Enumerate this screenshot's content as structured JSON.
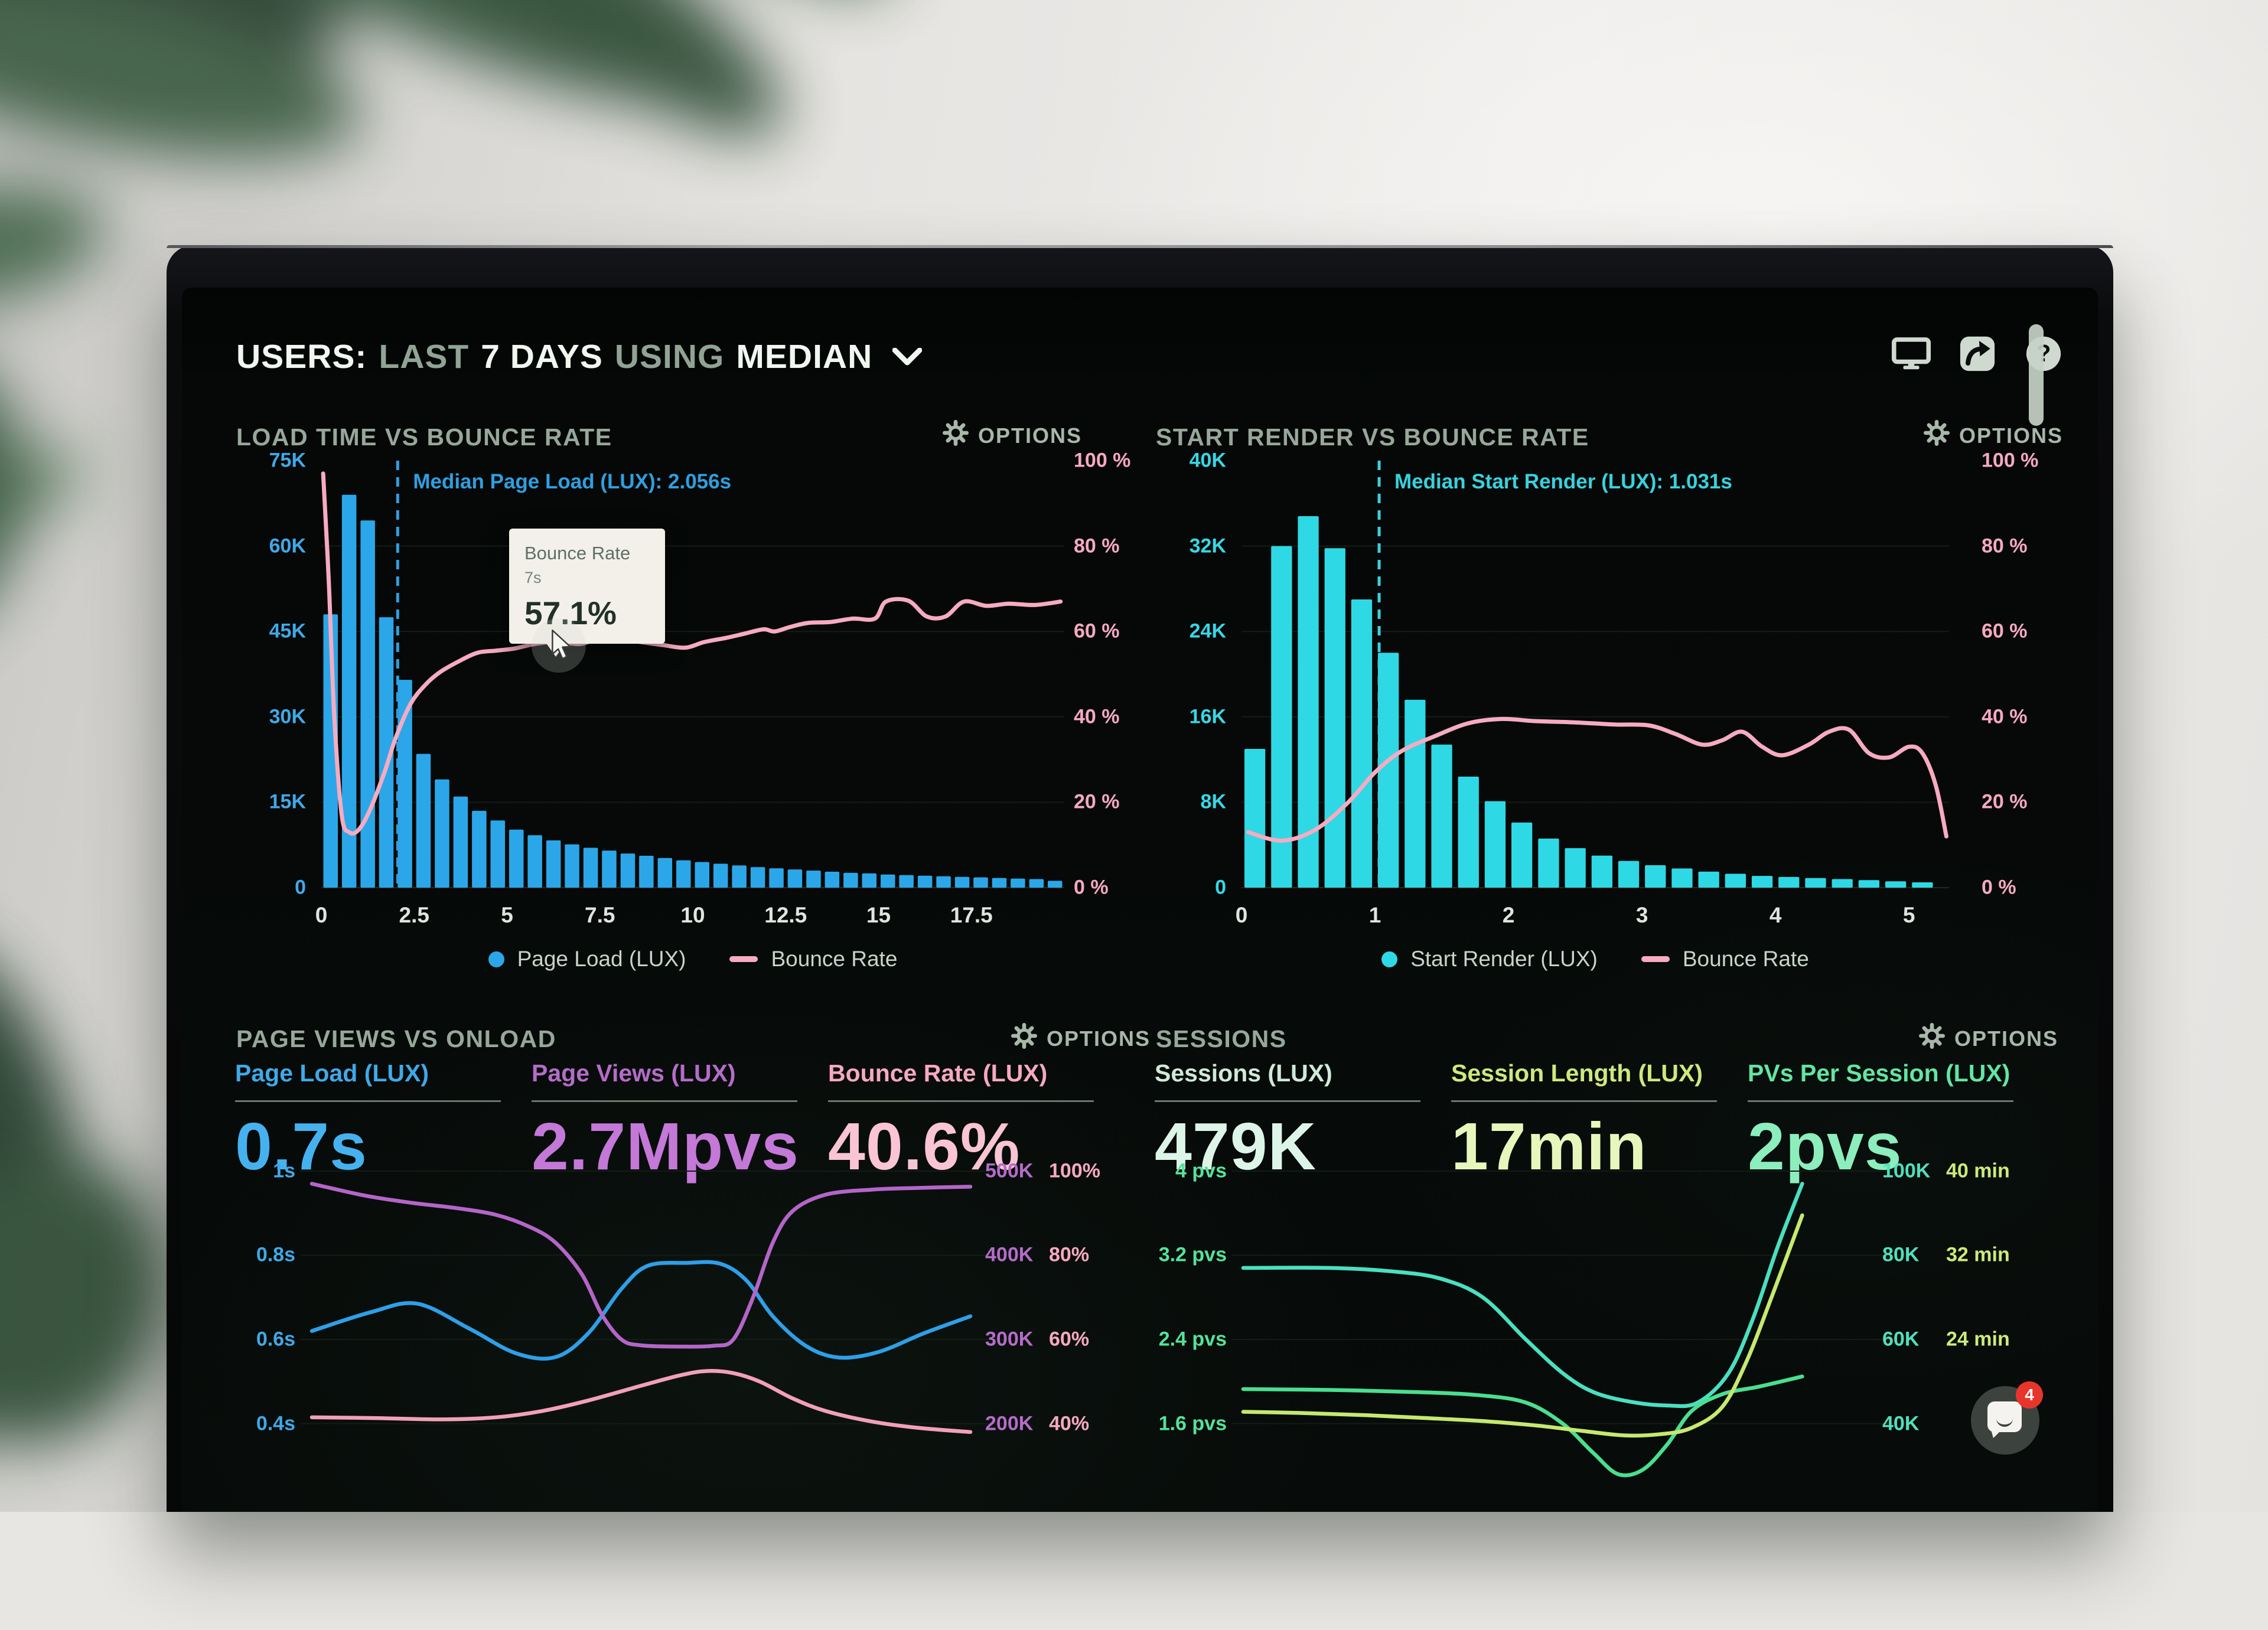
{
  "header": {
    "title_prefix": "USERS:",
    "range_label": "LAST",
    "range_value": "7 DAYS",
    "using_label": "USING",
    "agg_value": "MEDIAN"
  },
  "header_icons": [
    "monitor-icon",
    "share-icon",
    "help-icon"
  ],
  "tooltip": {
    "title": "Bounce Rate",
    "x": "7s",
    "value": "57.1%"
  },
  "chat": {
    "badge": "4"
  },
  "colors": {
    "blue": "#2ba7e9",
    "cyan": "#2fd8e5",
    "pink": "#f6abc1",
    "purple": "#b465c8",
    "teal": "#4fe0bd",
    "green": "#55e29a",
    "yellow_green": "#cdeb77",
    "pale_mint": "#dcf5e8"
  },
  "panels": {
    "load_time": {
      "title": "LOAD TIME VS BOUNCE RATE",
      "options": "OPTIONS"
    },
    "start_render": {
      "title": "START RENDER VS BOUNCE RATE",
      "options": "OPTIONS"
    },
    "page_views": {
      "title": "PAGE VIEWS VS ONLOAD",
      "options": "OPTIONS",
      "metrics": [
        {
          "label": "Page Load (LUX)",
          "value": "0.7s",
          "label_color": "#3fa9e8",
          "value_color": "#45b2ef"
        },
        {
          "label": "Page Views (LUX)",
          "value": "2.7Mpvs",
          "label_color": "#b56cc9",
          "value_color": "#c478d8"
        },
        {
          "label": "Bounce Rate (LUX)",
          "value": "40.6%",
          "label_color": "#f6a9c0",
          "value_color": "#f9c4d4"
        }
      ]
    },
    "sessions": {
      "title": "SESSIONS",
      "options": "OPTIONS",
      "metrics": [
        {
          "label": "Sessions (LUX)",
          "value": "479K",
          "label_color": "#cfe9d9",
          "value_color": "#dcf5e8"
        },
        {
          "label": "Session Length (LUX)",
          "value": "17min",
          "label_color": "#cde97c",
          "value_color": "#e7f7bc"
        },
        {
          "label": "PVs Per Session (LUX)",
          "value": "2pvs",
          "label_color": "#62e5a4",
          "value_color": "#8ceebd"
        }
      ]
    }
  },
  "chart_data": [
    {
      "id": "load_time",
      "type": "bar+line",
      "title": "LOAD TIME VS BOUNCE RATE",
      "bar_series": "Page Load (LUX)",
      "bar_color": "#2ba7e9",
      "bar_unit": "pages (K)",
      "bar_step_s": 0.5,
      "x_max": 20,
      "x_unit": "seconds",
      "x_ticks": [
        0,
        2.5,
        5,
        7.5,
        10,
        12.5,
        15,
        17.5
      ],
      "y_left": {
        "max": 75,
        "ticks": [
          "75K",
          "60K",
          "45K",
          "30K",
          "15K",
          "0"
        ],
        "color": "#3fa9e8"
      },
      "y_right": {
        "max": 100,
        "ticks": [
          "100 %",
          "80 %",
          "60 %",
          "40 %",
          "20 %",
          "0 %"
        ],
        "color": "#f6a9c0"
      },
      "bars": [
        48,
        69,
        64.5,
        47.5,
        36.5,
        23.5,
        19,
        16,
        13.5,
        11.8,
        10.2,
        9.2,
        8.3,
        7.6,
        7,
        6.5,
        6,
        5.6,
        5.2,
        4.8,
        4.5,
        4.2,
        3.9,
        3.6,
        3.4,
        3.2,
        3,
        2.8,
        2.6,
        2.5,
        2.3,
        2.2,
        2.1,
        2,
        1.9,
        1.8,
        1.7,
        1.6,
        1.5,
        1.2
      ],
      "line_series": "Bounce Rate",
      "line_color": "#f6abc1",
      "line": [
        [
          0.05,
          97
        ],
        [
          0.2,
          72
        ],
        [
          0.35,
          40
        ],
        [
          0.55,
          17
        ],
        [
          0.75,
          13
        ],
        [
          1.0,
          13.5
        ],
        [
          1.3,
          18
        ],
        [
          1.7,
          27
        ],
        [
          2.0,
          35
        ],
        [
          2.4,
          43
        ],
        [
          2.8,
          47.5
        ],
        [
          3.2,
          50.5
        ],
        [
          3.7,
          53
        ],
        [
          4.2,
          55
        ],
        [
          4.7,
          55.5
        ],
        [
          5.2,
          56
        ],
        [
          5.7,
          57
        ],
        [
          6.2,
          57.5
        ],
        [
          6.7,
          57.2
        ],
        [
          7.0,
          57.1
        ],
        [
          7.5,
          58.2
        ],
        [
          8.0,
          58.2
        ],
        [
          8.6,
          57.5
        ],
        [
          9.2,
          56.8
        ],
        [
          9.8,
          56.2
        ],
        [
          10.3,
          57.5
        ],
        [
          10.9,
          58.5
        ],
        [
          11.4,
          59.5
        ],
        [
          11.9,
          60.5
        ],
        [
          12.2,
          60
        ],
        [
          12.6,
          61
        ],
        [
          13.1,
          62
        ],
        [
          13.7,
          62.2
        ],
        [
          14.3,
          63
        ],
        [
          14.9,
          63
        ],
        [
          15.2,
          67
        ],
        [
          15.8,
          67.2
        ],
        [
          16.3,
          63.5
        ],
        [
          16.8,
          63.5
        ],
        [
          17.3,
          67
        ],
        [
          17.9,
          66
        ],
        [
          18.5,
          66.5
        ],
        [
          19.2,
          66.2
        ],
        [
          19.9,
          67
        ]
      ],
      "median": {
        "x": 2.056,
        "label": "Median Page Load (LUX): 2.056s",
        "color": "#2f9fe0"
      },
      "legend": [
        {
          "label": "Page Load (LUX)",
          "color": "#2ba7e9",
          "marker": "dot"
        },
        {
          "label": "Bounce Rate",
          "color": "#f6abc1",
          "marker": "line"
        }
      ]
    },
    {
      "id": "start_render",
      "type": "bar+line",
      "title": "START RENDER VS BOUNCE RATE",
      "bar_series": "Start Render (LUX)",
      "bar_color": "#2fd8e5",
      "bar_unit": "pages (K)",
      "bar_step_s": 0.2,
      "x_max": 5.3,
      "x_unit": "seconds",
      "x_ticks": [
        0,
        1,
        2,
        3,
        4,
        5
      ],
      "y_left": {
        "max": 40,
        "ticks": [
          "40K",
          "32K",
          "24K",
          "16K",
          "8K",
          "0"
        ],
        "color": "#36d8e6"
      },
      "y_right": {
        "max": 100,
        "ticks": [
          "100 %",
          "80 %",
          "60 %",
          "40 %",
          "20 %",
          "0 %"
        ],
        "color": "#f6a9c0"
      },
      "bars": [
        13,
        32,
        34.8,
        31.8,
        27,
        22,
        17.6,
        13.4,
        10.4,
        8.1,
        6.1,
        4.6,
        3.7,
        3,
        2.5,
        2.1,
        1.8,
        1.5,
        1.3,
        1.1,
        1,
        0.9,
        0.8,
        0.7,
        0.6,
        0.5
      ],
      "line_series": "Bounce Rate",
      "line_color": "#f6abc1",
      "line": [
        [
          0.05,
          13
        ],
        [
          0.3,
          11
        ],
        [
          0.55,
          13.5
        ],
        [
          0.8,
          20
        ],
        [
          1.0,
          27
        ],
        [
          1.2,
          32
        ],
        [
          1.45,
          35.5
        ],
        [
          1.7,
          38.5
        ],
        [
          1.95,
          39.5
        ],
        [
          2.2,
          39
        ],
        [
          2.5,
          38.7
        ],
        [
          2.8,
          38.2
        ],
        [
          3.05,
          38
        ],
        [
          3.25,
          36
        ],
        [
          3.45,
          33.5
        ],
        [
          3.6,
          34.5
        ],
        [
          3.75,
          36.5
        ],
        [
          3.9,
          33
        ],
        [
          4.05,
          31
        ],
        [
          4.25,
          33.5
        ],
        [
          4.4,
          36.5
        ],
        [
          4.55,
          37
        ],
        [
          4.7,
          31.5
        ],
        [
          4.85,
          30.5
        ],
        [
          5.0,
          33
        ],
        [
          5.1,
          31.5
        ],
        [
          5.2,
          24
        ],
        [
          5.28,
          12
        ]
      ],
      "median": {
        "x": 1.031,
        "label": "Median Start Render (LUX): 1.031s",
        "color": "#37d2de"
      },
      "legend": [
        {
          "label": "Start Render (LUX)",
          "color": "#2fd8e5",
          "marker": "dot"
        },
        {
          "label": "Bounce Rate",
          "color": "#f6abc1",
          "marker": "line"
        }
      ]
    },
    {
      "id": "page_views",
      "type": "multiline",
      "title": "PAGE VIEWS VS ONLOAD",
      "axis_rows": [
        {
          "left": "1s",
          "mid": "500K",
          "right": "100%"
        },
        {
          "left": "0.8s",
          "mid": "400K",
          "right": "80%"
        },
        {
          "left": "0.6s",
          "mid": "300K",
          "right": "60%"
        },
        {
          "left": "0.4s",
          "mid": "200K",
          "right": "40%"
        }
      ],
      "left_color": "#3fa9e8",
      "mid_color": "#b56cc9",
      "right_color": "#f6a9c0",
      "u_top": 1.0856,
      "u_bottom": 0.2716,
      "grid_u": [
        1.0,
        0.8,
        0.6,
        0.4
      ],
      "lines": [
        {
          "name": "Page Load (LUX) — seconds (u = s)",
          "color": "#2e9fe8",
          "points": [
            [
              0,
              0.62
            ],
            [
              9,
              0.665
            ],
            [
              16,
              0.685
            ],
            [
              24,
              0.625
            ],
            [
              31,
              0.567
            ],
            [
              37,
              0.558
            ],
            [
              42,
              0.615
            ],
            [
              47,
              0.72
            ],
            [
              51,
              0.775
            ],
            [
              57,
              0.782
            ],
            [
              62,
              0.78
            ],
            [
              66,
              0.74
            ],
            [
              70,
              0.655
            ],
            [
              75,
              0.585
            ],
            [
              80,
              0.557
            ],
            [
              86,
              0.57
            ],
            [
              93,
              0.615
            ],
            [
              100,
              0.655
            ]
          ]
        },
        {
          "name": "Page Views (LUX) — thousands (u = K/500)",
          "color": "#b465c8",
          "points": [
            [
              0,
              0.97
            ],
            [
              8,
              0.942
            ],
            [
              15,
              0.925
            ],
            [
              22,
              0.912
            ],
            [
              28,
              0.896
            ],
            [
              33,
              0.868
            ],
            [
              37,
              0.83
            ],
            [
              41,
              0.755
            ],
            [
              44,
              0.66
            ],
            [
              47,
              0.6
            ],
            [
              50,
              0.586
            ],
            [
              56,
              0.583
            ],
            [
              61,
              0.585
            ],
            [
              64,
              0.6
            ],
            [
              67,
              0.7
            ],
            [
              70,
              0.83
            ],
            [
              73,
              0.905
            ],
            [
              78,
              0.944
            ],
            [
              85,
              0.956
            ],
            [
              92,
              0.96
            ],
            [
              100,
              0.963
            ]
          ]
        },
        {
          "name": "Bounce Rate — percent (u = %/100)",
          "color": "#f2a0b8",
          "points": [
            [
              0,
              0.415
            ],
            [
              10,
              0.413
            ],
            [
              20,
              0.41
            ],
            [
              28,
              0.415
            ],
            [
              35,
              0.43
            ],
            [
              42,
              0.455
            ],
            [
              50,
              0.49
            ],
            [
              56,
              0.515
            ],
            [
              60,
              0.525
            ],
            [
              64,
              0.52
            ],
            [
              68,
              0.5
            ],
            [
              73,
              0.46
            ],
            [
              78,
              0.43
            ],
            [
              85,
              0.405
            ],
            [
              92,
              0.39
            ],
            [
              100,
              0.38
            ]
          ]
        }
      ]
    },
    {
      "id": "sessions",
      "type": "multiline",
      "title": "SESSIONS",
      "axis_rows": [
        {
          "left": "4 pvs",
          "mid": "100K",
          "right": "40 min"
        },
        {
          "left": "3.2 pvs",
          "mid": "80K",
          "right": "32 min"
        },
        {
          "left": "2.4 pvs",
          "mid": "60K",
          "right": "24 min"
        },
        {
          "left": "1.6 pvs",
          "mid": "40K",
          "right": ""
        }
      ],
      "left_color": "#55e29a",
      "mid_color": "#4fe0bd",
      "right_color": "#cdeb77",
      "u_top": 1.0856,
      "u_bottom": 0.2716,
      "grid_u": [
        1.0,
        0.8,
        0.6,
        0.4
      ],
      "lines": [
        {
          "name": "Sessions (LUX) — thousands (u = K/100)",
          "color": "#49e0c0",
          "points": [
            [
              0,
              0.77
            ],
            [
              14,
              0.77
            ],
            [
              24,
              0.762
            ],
            [
              32,
              0.745
            ],
            [
              39,
              0.7
            ],
            [
              46,
              0.6
            ],
            [
              52,
              0.52
            ],
            [
              57,
              0.475
            ],
            [
              63,
              0.452
            ],
            [
              69,
              0.443
            ],
            [
              74,
              0.45
            ],
            [
              79,
              0.52
            ],
            [
              83,
              0.65
            ],
            [
              87,
              0.82
            ],
            [
              91,
              0.97
            ]
          ]
        },
        {
          "name": "PVs Per Session (LUX) — pvs (u = pvs/4)",
          "color": "#4adf8f",
          "points": [
            [
              0,
              0.482
            ],
            [
              14,
              0.48
            ],
            [
              28,
              0.475
            ],
            [
              38,
              0.468
            ],
            [
              46,
              0.45
            ],
            [
              52,
              0.4
            ],
            [
              57,
              0.33
            ],
            [
              61,
              0.28
            ],
            [
              65,
              0.29
            ],
            [
              69,
              0.35
            ],
            [
              73,
              0.43
            ],
            [
              78,
              0.47
            ],
            [
              84,
              0.488
            ],
            [
              91,
              0.512
            ]
          ]
        },
        {
          "name": "Session Length (LUX) — minutes (u = min/40)",
          "color": "#c6e96e",
          "points": [
            [
              0,
              0.428
            ],
            [
              10,
              0.425
            ],
            [
              20,
              0.42
            ],
            [
              30,
              0.413
            ],
            [
              40,
              0.405
            ],
            [
              48,
              0.395
            ],
            [
              55,
              0.383
            ],
            [
              62,
              0.372
            ],
            [
              68,
              0.375
            ],
            [
              73,
              0.39
            ],
            [
              78,
              0.44
            ],
            [
              82,
              0.55
            ],
            [
              86,
              0.7
            ],
            [
              91,
              0.895
            ]
          ]
        }
      ]
    }
  ]
}
